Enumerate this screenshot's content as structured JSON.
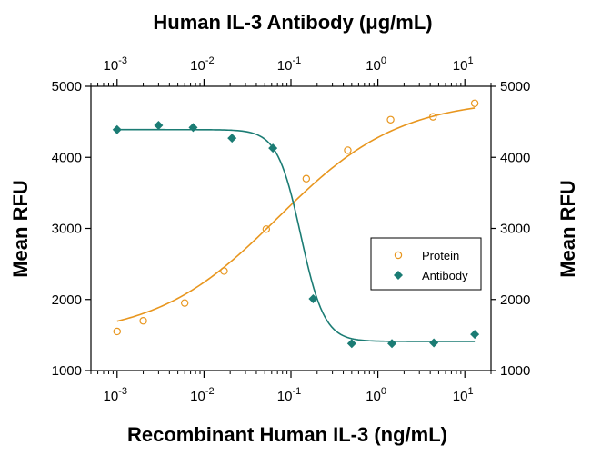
{
  "chart_data": {
    "type": "scatter",
    "title": "Human IL-3 Antibody (μg/mL)",
    "xlabel": "Recombinant Human IL-3 (ng/mL)",
    "ylabel_left": "Mean RFU",
    "ylabel_right": "Mean RFU",
    "x_scale": "log",
    "xlim": [
      0.0005,
      20
    ],
    "ylim": [
      1000,
      5000
    ],
    "y_ticks": [
      "1000",
      "2000",
      "3000",
      "4000",
      "5000"
    ],
    "x_ticks": [
      {
        "base": "10",
        "exp": "-3",
        "value": 0.001
      },
      {
        "base": "10",
        "exp": "-2",
        "value": 0.01
      },
      {
        "base": "10",
        "exp": "-1",
        "value": 0.1
      },
      {
        "base": "10",
        "exp": "0",
        "value": 1
      },
      {
        "base": "10",
        "exp": "1",
        "value": 10
      }
    ],
    "top_x_ticks": [
      {
        "base": "10",
        "exp": "-3",
        "value": 0.001
      },
      {
        "base": "10",
        "exp": "-2",
        "value": 0.01
      },
      {
        "base": "10",
        "exp": "-1",
        "value": 0.1
      },
      {
        "base": "10",
        "exp": "0",
        "value": 1
      },
      {
        "base": "10",
        "exp": "1",
        "value": 10
      }
    ],
    "legend_position": "center-right",
    "series": [
      {
        "name": "Protein",
        "marker": "open-circle",
        "color": "#E8961E",
        "x": [
          0.001,
          0.002,
          0.006,
          0.017,
          0.052,
          0.15,
          0.45,
          1.4,
          4.3,
          13
        ],
        "y": [
          1550,
          1700,
          1950,
          2400,
          2990,
          3700,
          4100,
          4530,
          4570,
          4760
        ],
        "fit": {
          "bottom": 1470,
          "top": 4820,
          "ec50": 0.07,
          "hill": 0.62
        }
      },
      {
        "name": "Antibody",
        "marker": "filled-diamond",
        "color": "#1B7C74",
        "x": [
          0.001,
          0.003,
          0.0075,
          0.021,
          0.062,
          0.18,
          0.5,
          1.45,
          4.4,
          13
        ],
        "y": [
          4390,
          4450,
          4420,
          4270,
          4130,
          2010,
          1380,
          1380,
          1390,
          1510
        ],
        "fit": {
          "bottom": 1410,
          "top": 4390,
          "ec50": 0.13,
          "hill": 3.2
        }
      }
    ]
  }
}
